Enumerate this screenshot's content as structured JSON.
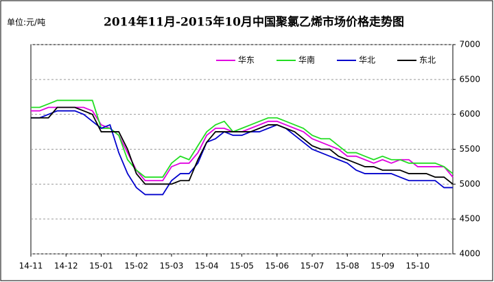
{
  "chart_data": {
    "type": "line",
    "title": "2014年11月-2015年10月中国聚氯乙烯市场价格走势图",
    "unit": "单位:元/吨",
    "x": [
      0,
      0.25,
      0.5,
      0.75,
      1,
      1.25,
      1.5,
      1.75,
      2,
      2.25,
      2.5,
      2.75,
      3,
      3.25,
      3.5,
      3.75,
      4,
      4.25,
      4.5,
      4.75,
      5,
      5.25,
      5.5,
      5.75,
      6,
      6.25,
      6.5,
      6.75,
      7,
      7.25,
      7.5,
      7.75,
      8,
      8.25,
      8.5,
      8.75,
      9,
      9.25,
      9.5,
      9.75,
      10,
      10.25,
      10.5,
      10.75,
      11,
      11.25,
      11.5,
      11.75,
      12
    ],
    "xlim": [
      0,
      12
    ],
    "xticks": [
      {
        "value": 0,
        "label": "14-11"
      },
      {
        "value": 1,
        "label": "14-12"
      },
      {
        "value": 2,
        "label": "15-01"
      },
      {
        "value": 3,
        "label": "15-02"
      },
      {
        "value": 4,
        "label": "15-03"
      },
      {
        "value": 5,
        "label": "15-04"
      },
      {
        "value": 6,
        "label": "15-05"
      },
      {
        "value": 7,
        "label": "15-06"
      },
      {
        "value": 8,
        "label": "15-07"
      },
      {
        "value": 9,
        "label": "15-08"
      },
      {
        "value": 10,
        "label": "15-09"
      },
      {
        "value": 11,
        "label": "15-10"
      }
    ],
    "ylim": [
      4000,
      7000
    ],
    "yticks": [
      4000,
      4500,
      5000,
      5500,
      6000,
      6500,
      7000
    ],
    "grid": true,
    "series": [
      {
        "name": "华东",
        "color": "#e000e0",
        "values": [
          6050,
          6050,
          6100,
          6100,
          6100,
          6100,
          6100,
          6050,
          5850,
          5800,
          5700,
          5450,
          5200,
          5050,
          5050,
          5050,
          5250,
          5300,
          5300,
          5450,
          5700,
          5800,
          5800,
          5750,
          5750,
          5800,
          5850,
          5900,
          5900,
          5850,
          5800,
          5750,
          5650,
          5600,
          5550,
          5500,
          5400,
          5400,
          5350,
          5300,
          5350,
          5300,
          5350,
          5350,
          5250,
          5250,
          5250,
          5250,
          5100
        ]
      },
      {
        "name": "华南",
        "color": "#22dd22",
        "values": [
          6100,
          6100,
          6150,
          6200,
          6200,
          6200,
          6200,
          6200,
          5800,
          5800,
          5700,
          5350,
          5200,
          5100,
          5100,
          5100,
          5300,
          5400,
          5350,
          5550,
          5750,
          5850,
          5900,
          5750,
          5800,
          5850,
          5900,
          5950,
          5950,
          5900,
          5850,
          5800,
          5700,
          5650,
          5650,
          5550,
          5450,
          5450,
          5400,
          5350,
          5400,
          5350,
          5350,
          5300,
          5300,
          5300,
          5300,
          5250,
          5150
        ]
      },
      {
        "name": "华北",
        "color": "#0000cc",
        "values": [
          5950,
          5950,
          6000,
          6050,
          6050,
          6050,
          6000,
          5900,
          5800,
          5850,
          5450,
          5150,
          4950,
          4850,
          4850,
          4850,
          5050,
          5150,
          5150,
          5300,
          5600,
          5650,
          5750,
          5700,
          5700,
          5750,
          5750,
          5800,
          5850,
          5800,
          5700,
          5600,
          5500,
          5450,
          5400,
          5350,
          5300,
          5200,
          5150,
          5150,
          5150,
          5150,
          5100,
          5050,
          5050,
          5050,
          5050,
          4950,
          4950
        ]
      },
      {
        "name": "东北",
        "color": "#000000",
        "values": [
          5950,
          5950,
          5950,
          6100,
          6100,
          6100,
          6050,
          6000,
          5750,
          5750,
          5750,
          5500,
          5150,
          5000,
          5000,
          5000,
          5000,
          5050,
          5050,
          5350,
          5600,
          5750,
          5750,
          5750,
          5750,
          5750,
          5800,
          5850,
          5850,
          5800,
          5750,
          5650,
          5550,
          5500,
          5500,
          5400,
          5350,
          5300,
          5250,
          5250,
          5200,
          5200,
          5200,
          5150,
          5150,
          5150,
          5100,
          5100,
          5000
        ]
      }
    ]
  }
}
